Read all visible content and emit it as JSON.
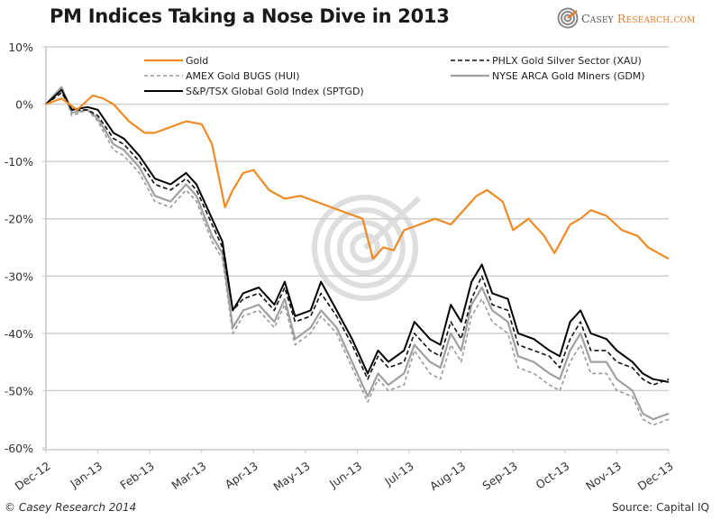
{
  "header": {
    "title": "PM Indices Taking a Nose Dive in 2013",
    "logo_text_a": "Casey ",
    "logo_text_b": "Research",
    "logo_text_c": ".com"
  },
  "footer": {
    "copyright": "© Casey Research 2014",
    "source": "Source: Capital IQ"
  },
  "colors": {
    "gold": "#f08a24",
    "xau": "#111111",
    "hui": "#999999",
    "gdm": "#a0a0a0",
    "sptgd": "#000000",
    "grid": "#d0d0d0",
    "watermark": "#dedede"
  },
  "chart_data": {
    "type": "line",
    "title": "PM Indices Taking a Nose Dive in 2013",
    "xlabel": "",
    "ylabel": "",
    "ylim": [
      -60,
      10
    ],
    "yticks": [
      10,
      0,
      -10,
      -20,
      -30,
      -40,
      -50,
      -60
    ],
    "ytick_labels": [
      "10%",
      "0%",
      "-10%",
      "-20%",
      "-30%",
      "-40%",
      "-50%",
      "-60%"
    ],
    "xlim": [
      0,
      12
    ],
    "xtick_labels": [
      "Dec-12",
      "Jan-13",
      "Feb-13",
      "Mar-13",
      "Apr-13",
      "May-13",
      "Jun-13",
      "Jul-13",
      "Aug-13",
      "Sep-13",
      "Oct-13",
      "Nov-13",
      "Dec-13"
    ],
    "grid": "horizontal",
    "legend_position": "top",
    "x_unit": "months since Dec-12",
    "series": [
      {
        "key": "gold",
        "name": "Gold",
        "style": "solid",
        "x": [
          0,
          0.3,
          0.6,
          0.9,
          1.1,
          1.3,
          1.6,
          1.9,
          2.1,
          2.4,
          2.7,
          3.0,
          3.2,
          3.45,
          3.5,
          3.6,
          3.8,
          4.0,
          4.3,
          4.6,
          4.9,
          5.2,
          5.5,
          5.8,
          6.1,
          6.3,
          6.5,
          6.7,
          6.9,
          7.2,
          7.5,
          7.8,
          8.1,
          8.3,
          8.5,
          8.8,
          9.0,
          9.3,
          9.6,
          9.8,
          10.1,
          10.3,
          10.5,
          10.8,
          11.1,
          11.4,
          11.6,
          11.8,
          12.0
        ],
        "values": [
          0,
          1,
          -1,
          1.5,
          1,
          0,
          -3,
          -5,
          -5,
          -4,
          -3,
          -3.5,
          -7,
          -18,
          -17,
          -15,
          -12,
          -11.5,
          -15,
          -16.5,
          -16,
          -17,
          -18,
          -19,
          -20,
          -27,
          -25,
          -25.5,
          -22,
          -21,
          -20,
          -21,
          -18,
          -16,
          -15,
          -17,
          -22,
          -20,
          -23,
          -26,
          -21,
          -20,
          -18.5,
          -19.5,
          -22,
          -23,
          -25,
          -26,
          -27
        ]
      },
      {
        "key": "xau",
        "name": "PHLX Gold Silver Sector (XAU)",
        "style": "dashed",
        "x": [
          0,
          0.3,
          0.5,
          0.8,
          1.0,
          1.3,
          1.5,
          1.8,
          2.1,
          2.4,
          2.7,
          2.9,
          3.2,
          3.4,
          3.6,
          3.8,
          4.1,
          4.4,
          4.6,
          4.8,
          5.1,
          5.3,
          5.6,
          5.9,
          6.2,
          6.4,
          6.6,
          6.9,
          7.1,
          7.4,
          7.6,
          7.8,
          8.0,
          8.2,
          8.4,
          8.6,
          8.9,
          9.1,
          9.4,
          9.7,
          9.9,
          10.1,
          10.3,
          10.5,
          10.8,
          11.0,
          11.3,
          11.5,
          11.7,
          12.0
        ],
        "values": [
          0,
          2,
          -1,
          -1,
          -2,
          -6,
          -7,
          -10,
          -14,
          -15,
          -13,
          -15,
          -21,
          -25,
          -36,
          -34,
          -33,
          -36,
          -32,
          -38,
          -37,
          -33,
          -37,
          -42,
          -48,
          -44,
          -46,
          -45,
          -40,
          -43,
          -44,
          -38,
          -41,
          -34,
          -30,
          -35,
          -36,
          -42,
          -43,
          -44,
          -46,
          -41,
          -38,
          -43,
          -43,
          -45,
          -46,
          -48,
          -49,
          -48
        ]
      },
      {
        "key": "hui",
        "name": "AMEX Gold BUGS (HUI)",
        "style": "dashed",
        "x": [
          0,
          0.3,
          0.5,
          0.8,
          1.0,
          1.3,
          1.5,
          1.8,
          2.1,
          2.4,
          2.7,
          2.9,
          3.2,
          3.4,
          3.6,
          3.8,
          4.1,
          4.4,
          4.6,
          4.8,
          5.1,
          5.3,
          5.6,
          5.9,
          6.2,
          6.4,
          6.6,
          6.9,
          7.1,
          7.4,
          7.6,
          7.8,
          8.0,
          8.2,
          8.4,
          8.6,
          8.9,
          9.1,
          9.4,
          9.7,
          9.9,
          10.1,
          10.3,
          10.5,
          10.8,
          11.0,
          11.3,
          11.5,
          11.7,
          12.0
        ],
        "values": [
          0,
          3,
          -2,
          -1,
          -3,
          -8,
          -9,
          -12,
          -17,
          -18,
          -15,
          -17,
          -24,
          -27,
          -40,
          -37,
          -36,
          -39,
          -35,
          -42,
          -40,
          -37,
          -40,
          -46,
          -52,
          -48,
          -50,
          -49,
          -43,
          -47,
          -48,
          -42,
          -45,
          -37,
          -34,
          -38,
          -40,
          -46,
          -47,
          -49,
          -50,
          -45,
          -42,
          -47,
          -47,
          -50,
          -51,
          -55,
          -56,
          -55
        ]
      },
      {
        "key": "gdm",
        "name": "NYSE ARCA Gold Miners (GDM)",
        "style": "solid",
        "x": [
          0,
          0.3,
          0.5,
          0.8,
          1.0,
          1.3,
          1.5,
          1.8,
          2.1,
          2.4,
          2.7,
          2.9,
          3.2,
          3.4,
          3.6,
          3.8,
          4.1,
          4.4,
          4.6,
          4.8,
          5.1,
          5.3,
          5.6,
          5.9,
          6.2,
          6.4,
          6.6,
          6.9,
          7.1,
          7.4,
          7.6,
          7.8,
          8.0,
          8.2,
          8.4,
          8.6,
          8.9,
          9.1,
          9.4,
          9.7,
          9.9,
          10.1,
          10.3,
          10.5,
          10.8,
          11.0,
          11.3,
          11.5,
          11.7,
          12.0
        ],
        "values": [
          0,
          3,
          -1.5,
          -1,
          -2.5,
          -7,
          -8,
          -11,
          -16,
          -17,
          -14,
          -16,
          -23,
          -26,
          -39,
          -36,
          -35,
          -38,
          -34,
          -41,
          -39,
          -36,
          -39,
          -45,
          -51,
          -47,
          -49,
          -47,
          -42,
          -45,
          -46,
          -40,
          -43,
          -35,
          -32,
          -36,
          -38,
          -44,
          -45,
          -47,
          -48,
          -43,
          -40,
          -45,
          -45,
          -48,
          -50,
          -54,
          -55,
          -54
        ]
      },
      {
        "key": "sptgd",
        "name": "S&P/TSX Global Gold Index (SPTGD)",
        "style": "solid",
        "x": [
          0,
          0.3,
          0.5,
          0.8,
          1.0,
          1.3,
          1.5,
          1.8,
          2.1,
          2.4,
          2.7,
          2.9,
          3.2,
          3.4,
          3.6,
          3.8,
          4.1,
          4.4,
          4.6,
          4.8,
          5.1,
          5.3,
          5.6,
          5.9,
          6.2,
          6.4,
          6.6,
          6.9,
          7.1,
          7.4,
          7.6,
          7.8,
          8.0,
          8.2,
          8.4,
          8.6,
          8.9,
          9.1,
          9.4,
          9.7,
          9.9,
          10.1,
          10.3,
          10.5,
          10.8,
          11.0,
          11.3,
          11.5,
          11.7,
          12.0
        ],
        "values": [
          0,
          2.5,
          -1,
          -0.5,
          -1,
          -5,
          -6,
          -9,
          -13,
          -14,
          -12,
          -14,
          -20,
          -24,
          -36,
          -33,
          -32,
          -35,
          -31,
          -37,
          -36,
          -31,
          -36,
          -41,
          -47,
          -43,
          -45,
          -43,
          -38,
          -41,
          -42,
          -35,
          -38,
          -31,
          -28,
          -33,
          -34,
          -40,
          -41,
          -43,
          -44,
          -38,
          -36,
          -40,
          -41,
          -43,
          -45,
          -47,
          -48,
          -48.5
        ]
      }
    ]
  }
}
